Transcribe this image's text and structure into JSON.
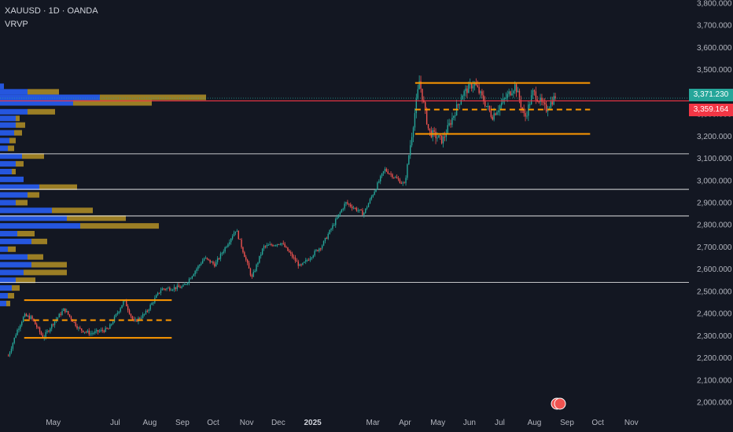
{
  "header": {
    "symbol_line": "XAUUSD · 1D · OANDA",
    "indicator": "VRVP"
  },
  "colors": {
    "background": "#131722",
    "bull": "#26a69a",
    "bear": "#ef5350",
    "level_line": "#ffffff",
    "range_box": "#ff9800",
    "profile_blue": "#2962ff",
    "profile_gold": "#c9a227",
    "last_price_bg": "#26a69a",
    "marker_price_bg": "#f23645"
  },
  "chart_data": {
    "type": "candlestick",
    "y_axis": {
      "min": 2000,
      "max": 3800,
      "ticks": [
        "3,800.000",
        "3,700.000",
        "3,600.000",
        "3,500.000",
        "3,400.000",
        "3,300.000",
        "3,200.000",
        "3,100.000",
        "3,000.000",
        "2,900.000",
        "2,800.000",
        "2,700.000",
        "2,600.000",
        "2,500.000",
        "2,400.000",
        "2,300.000",
        "2,200.000",
        "2,100.000",
        "2,000.000"
      ],
      "tick_values": [
        3800,
        3700,
        3600,
        3500,
        3400,
        3300,
        3200,
        3100,
        3000,
        2900,
        2800,
        2700,
        2600,
        2500,
        2400,
        2300,
        2200,
        2100,
        2000
      ]
    },
    "x_axis": {
      "labels": [
        "May",
        "Jul",
        "Aug",
        "Sep",
        "Oct",
        "Nov",
        "Dec",
        "2025",
        "Mar",
        "Apr",
        "May",
        "Jun",
        "Jul",
        "Aug",
        "Sep",
        "Oct",
        "Nov"
      ],
      "label_dates": [
        "2024-05-01",
        "2024-07-01",
        "2024-08-01",
        "2024-09-01",
        "2024-10-01",
        "2024-11-01",
        "2024-12-01",
        "2025-01-01",
        "2025-03-01",
        "2025-04-01",
        "2025-05-01",
        "2025-06-01",
        "2025-07-01",
        "2025-08-01",
        "2025-09-01",
        "2025-10-01",
        "2025-11-01"
      ],
      "bold_labels": [
        "2025"
      ]
    },
    "price_path": [
      [
        "2024-03-28",
        2210
      ],
      [
        "2024-04-05",
        2320
      ],
      [
        "2024-04-12",
        2390
      ],
      [
        "2024-04-19",
        2380
      ],
      [
        "2024-04-30",
        2290
      ],
      [
        "2024-05-10",
        2360
      ],
      [
        "2024-05-20",
        2420
      ],
      [
        "2024-06-03",
        2330
      ],
      [
        "2024-06-14",
        2310
      ],
      [
        "2024-07-01",
        2330
      ],
      [
        "2024-07-16",
        2460
      ],
      [
        "2024-07-25",
        2360
      ],
      [
        "2024-08-05",
        2400
      ],
      [
        "2024-08-20",
        2510
      ],
      [
        "2024-09-10",
        2520
      ],
      [
        "2024-09-30",
        2650
      ],
      [
        "2024-10-10",
        2620
      ],
      [
        "2024-10-30",
        2780
      ],
      [
        "2024-11-14",
        2560
      ],
      [
        "2024-11-25",
        2700
      ],
      [
        "2024-12-12",
        2720
      ],
      [
        "2024-12-30",
        2610
      ],
      [
        "2025-01-20",
        2710
      ],
      [
        "2025-02-11",
        2900
      ],
      [
        "2025-02-28",
        2850
      ],
      [
        "2025-03-20",
        3050
      ],
      [
        "2025-04-08",
        2980
      ],
      [
        "2025-04-22",
        3450
      ],
      [
        "2025-05-01",
        3220
      ],
      [
        "2025-05-14",
        3180
      ],
      [
        "2025-06-02",
        3390
      ],
      [
        "2025-06-13",
        3440
      ],
      [
        "2025-06-30",
        3290
      ],
      [
        "2025-07-22",
        3430
      ],
      [
        "2025-07-31",
        3280
      ],
      [
        "2025-08-08",
        3400
      ],
      [
        "2025-08-20",
        3320
      ],
      [
        "2025-08-29",
        3380
      ]
    ],
    "horizontal_levels": [
      3120,
      2960,
      2840,
      2540
    ],
    "marker_line": 3359.164,
    "dotted_line": 3371.23,
    "last_price": "3,371.230",
    "marker_price": "3,359.164",
    "ranges": [
      {
        "start": "2025-04-18",
        "end": "2025-10-01",
        "top": 3440,
        "mid": 3320,
        "bottom": 3210
      },
      {
        "start": "2024-04-12",
        "end": "2024-08-30",
        "top": 2460,
        "mid": 2370,
        "bottom": 2290
      }
    ],
    "volume_profile": [
      {
        "price": 3425,
        "up": 5,
        "down": 0
      },
      {
        "price": 3400,
        "up": 35,
        "down": 40
      },
      {
        "price": 3375,
        "up": 127,
        "down": 135
      },
      {
        "price": 3350,
        "up": 93,
        "down": 100
      },
      {
        "price": 3310,
        "up": 35,
        "down": 35
      },
      {
        "price": 3280,
        "up": 20,
        "down": 5
      },
      {
        "price": 3250,
        "up": 20,
        "down": 12
      },
      {
        "price": 3215,
        "up": 18,
        "down": 10
      },
      {
        "price": 3180,
        "up": 12,
        "down": 8
      },
      {
        "price": 3145,
        "up": 10,
        "down": 8
      },
      {
        "price": 3110,
        "up": 28,
        "down": 28
      },
      {
        "price": 3075,
        "up": 20,
        "down": 10
      },
      {
        "price": 3040,
        "up": 15,
        "down": 5
      },
      {
        "price": 3005,
        "up": 30,
        "down": 0
      },
      {
        "price": 2970,
        "up": 50,
        "down": 48
      },
      {
        "price": 2935,
        "up": 35,
        "down": 15
      },
      {
        "price": 2900,
        "up": 20,
        "down": 15
      },
      {
        "price": 2865,
        "up": 66,
        "down": 52
      },
      {
        "price": 2830,
        "up": 85,
        "down": 75
      },
      {
        "price": 2795,
        "up": 102,
        "down": 100
      },
      {
        "price": 2760,
        "up": 22,
        "down": 22
      },
      {
        "price": 2725,
        "up": 40,
        "down": 20
      },
      {
        "price": 2690,
        "up": 10,
        "down": 10
      },
      {
        "price": 2655,
        "up": 35,
        "down": 20
      },
      {
        "price": 2620,
        "up": 40,
        "down": 45
      },
      {
        "price": 2585,
        "up": 30,
        "down": 55
      },
      {
        "price": 2550,
        "up": 20,
        "down": 25
      },
      {
        "price": 2515,
        "up": 15,
        "down": 10
      },
      {
        "price": 2480,
        "up": 10,
        "down": 8
      },
      {
        "price": 2445,
        "up": 8,
        "down": 5
      }
    ]
  }
}
